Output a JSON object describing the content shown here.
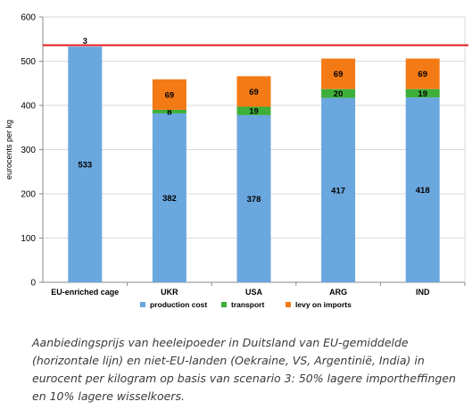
{
  "chart_data": {
    "type": "bar",
    "stacked": true,
    "categories": [
      "EU-enriched cage",
      "UKR",
      "USA",
      "ARG",
      "IND"
    ],
    "series": [
      {
        "name": "production cost",
        "color": "#6aa7de",
        "values": [
          533,
          382,
          378,
          417,
          418
        ]
      },
      {
        "name": "transport",
        "color": "#3daf3a",
        "values": [
          0,
          8,
          19,
          20,
          19
        ]
      },
      {
        "name": "levy on imports",
        "color": "#f47a16",
        "values": [
          0,
          69,
          69,
          69,
          69
        ]
      }
    ],
    "extra_labels": [
      {
        "category": "EU-enriched cage",
        "text": "3"
      }
    ],
    "reference_line": {
      "value": 536,
      "color": "#e31a1c"
    },
    "ylabel": "eurocents per kg",
    "ylim": [
      0,
      600
    ],
    "yticks": [
      0,
      100,
      200,
      300,
      400,
      500,
      600
    ],
    "legend_position": "bottom",
    "grid": true
  },
  "caption": "Aanbiedingsprijs van heeleipoeder in Duitsland van EU-gemiddelde (horizontale lijn) en niet-EU-landen (Oekraine, VS, Argentinië, India) in eurocent per kilogram op basis van scenario 3: 50% lagere importheffingen en 10% lagere wisselkoers."
}
